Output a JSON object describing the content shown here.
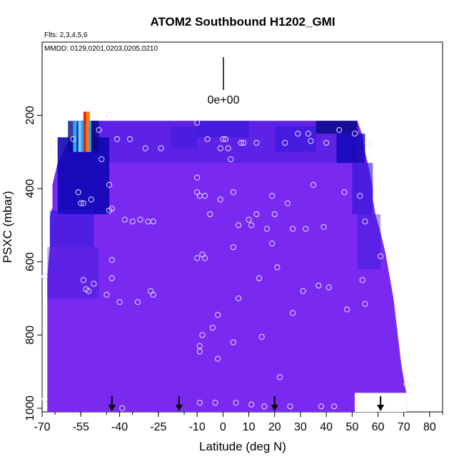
{
  "chart_data": {
    "type": "heatmap",
    "title": "ATOM2 Southbound H1202_GMI",
    "subtitle_flights": "Flts: 2,3,4,5,6",
    "subtitle_dates": "MMDD: 0129,0201,0203,0205,0210",
    "xlabel": "Latitude (deg N)",
    "ylabel": "PSXC (mbar)",
    "xlim": [
      -70,
      85
    ],
    "ylim": [
      1010,
      0
    ],
    "x_ticks": [
      -70,
      -55,
      -40,
      -25,
      -10,
      0,
      10,
      20,
      30,
      40,
      50,
      60,
      70,
      80
    ],
    "x_tick_labels": [
      "-70",
      "-55",
      "-40",
      "-25",
      "-10",
      "0",
      "10",
      "20",
      "30",
      "40",
      "50",
      "60",
      "70",
      "80"
    ],
    "y_ticks": [
      200,
      400,
      600,
      800,
      1000
    ],
    "y_tick_labels": [
      "200",
      "400",
      "600",
      "800",
      "1000"
    ],
    "colorbar_label": "0e+00",
    "grid": false,
    "arrow_latitudes": [
      -43,
      -17,
      20,
      61
    ],
    "colors": {
      "dominant": "#7a2af0",
      "blue": "#2a14d8",
      "dark_blue": "#0e08b6",
      "navy": "#0a0a8a",
      "light_blue": "#2ea8f0",
      "orange": "#ff7a00",
      "red": "#e02020"
    },
    "observations": [
      {
        "lat": -69,
        "p": 640
      },
      {
        "lat": -69,
        "p": 975
      },
      {
        "lat": -58,
        "p": 265
      },
      {
        "lat": -56,
        "p": 410
      },
      {
        "lat": -55,
        "p": 440
      },
      {
        "lat": -54,
        "p": 440
      },
      {
        "lat": -54,
        "p": 650
      },
      {
        "lat": -53,
        "p": 675
      },
      {
        "lat": -52,
        "p": 680
      },
      {
        "lat": -51,
        "p": 430
      },
      {
        "lat": -50,
        "p": 660
      },
      {
        "lat": -48,
        "p": 240
      },
      {
        "lat": -47,
        "p": 320
      },
      {
        "lat": -45,
        "p": 690
      },
      {
        "lat": -44,
        "p": 200
      },
      {
        "lat": -44,
        "p": 390
      },
      {
        "lat": -44,
        "p": 460
      },
      {
        "lat": -43,
        "p": 455
      },
      {
        "lat": -43,
        "p": 595
      },
      {
        "lat": -43,
        "p": 645
      },
      {
        "lat": -41,
        "p": 265
      },
      {
        "lat": -40,
        "p": 710
      },
      {
        "lat": -39,
        "p": 1000
      },
      {
        "lat": -38,
        "p": 485
      },
      {
        "lat": -36,
        "p": 265
      },
      {
        "lat": -35,
        "p": 490
      },
      {
        "lat": -33,
        "p": 710
      },
      {
        "lat": -32,
        "p": 485
      },
      {
        "lat": -30,
        "p": 290
      },
      {
        "lat": -29,
        "p": 490
      },
      {
        "lat": -28,
        "p": 680
      },
      {
        "lat": -27,
        "p": 490
      },
      {
        "lat": -27,
        "p": 690
      },
      {
        "lat": -24,
        "p": 290
      },
      {
        "lat": -10,
        "p": 220
      },
      {
        "lat": -10,
        "p": 590
      },
      {
        "lat": -10,
        "p": 370
      },
      {
        "lat": -10,
        "p": 410
      },
      {
        "lat": -9,
        "p": 420
      },
      {
        "lat": -9,
        "p": 830
      },
      {
        "lat": -9,
        "p": 845
      },
      {
        "lat": -9,
        "p": 985
      },
      {
        "lat": -8,
        "p": 580
      },
      {
        "lat": -8,
        "p": 800
      },
      {
        "lat": -7,
        "p": 590
      },
      {
        "lat": -7,
        "p": 420
      },
      {
        "lat": -6,
        "p": 265
      },
      {
        "lat": -5,
        "p": 470
      },
      {
        "lat": -4,
        "p": 780
      },
      {
        "lat": -3,
        "p": 985
      },
      {
        "lat": -2,
        "p": 745
      },
      {
        "lat": -2,
        "p": 865
      },
      {
        "lat": -1,
        "p": 430
      },
      {
        "lat": -1,
        "p": 290
      },
      {
        "lat": 0,
        "p": 265
      },
      {
        "lat": 1,
        "p": 265
      },
      {
        "lat": 2,
        "p": 290
      },
      {
        "lat": 3,
        "p": 320
      },
      {
        "lat": 4,
        "p": 410
      },
      {
        "lat": 4,
        "p": 560
      },
      {
        "lat": 4,
        "p": 820
      },
      {
        "lat": 5,
        "p": 985
      },
      {
        "lat": 6,
        "p": 700
      },
      {
        "lat": 6,
        "p": 500
      },
      {
        "lat": 7,
        "p": 275
      },
      {
        "lat": 8,
        "p": 275
      },
      {
        "lat": 10,
        "p": 485
      },
      {
        "lat": 11,
        "p": 500
      },
      {
        "lat": 11,
        "p": 990
      },
      {
        "lat": 13,
        "p": 275
      },
      {
        "lat": 13,
        "p": 470
      },
      {
        "lat": 14,
        "p": 645
      },
      {
        "lat": 15,
        "p": 805
      },
      {
        "lat": 16,
        "p": 995
      },
      {
        "lat": 17,
        "p": 510
      },
      {
        "lat": 19,
        "p": 420
      },
      {
        "lat": 19,
        "p": 550
      },
      {
        "lat": 20,
        "p": 470
      },
      {
        "lat": 21,
        "p": 615
      },
      {
        "lat": 22,
        "p": 915
      },
      {
        "lat": 24,
        "p": 275
      },
      {
        "lat": 25,
        "p": 440
      },
      {
        "lat": 26,
        "p": 995
      },
      {
        "lat": 27,
        "p": 510
      },
      {
        "lat": 27,
        "p": 740
      },
      {
        "lat": 29,
        "p": 250
      },
      {
        "lat": 31,
        "p": 680
      },
      {
        "lat": 32,
        "p": 510
      },
      {
        "lat": 33,
        "p": 250
      },
      {
        "lat": 34,
        "p": 270
      },
      {
        "lat": 35,
        "p": 390
      },
      {
        "lat": 37,
        "p": 665
      },
      {
        "lat": 38,
        "p": 995
      },
      {
        "lat": 39,
        "p": 505
      },
      {
        "lat": 40,
        "p": 275
      },
      {
        "lat": 41,
        "p": 670
      },
      {
        "lat": 43,
        "p": 995
      },
      {
        "lat": 45,
        "p": 240
      },
      {
        "lat": 47,
        "p": 410
      },
      {
        "lat": 48,
        "p": 730
      },
      {
        "lat": 51,
        "p": 250
      },
      {
        "lat": 53,
        "p": 420
      },
      {
        "lat": 54,
        "p": 650
      },
      {
        "lat": 55,
        "p": 715
      },
      {
        "lat": 55,
        "p": 490
      },
      {
        "lat": 56,
        "p": 275
      },
      {
        "lat": 61,
        "p": 585
      },
      {
        "lat": 71,
        "p": 935
      }
    ]
  }
}
